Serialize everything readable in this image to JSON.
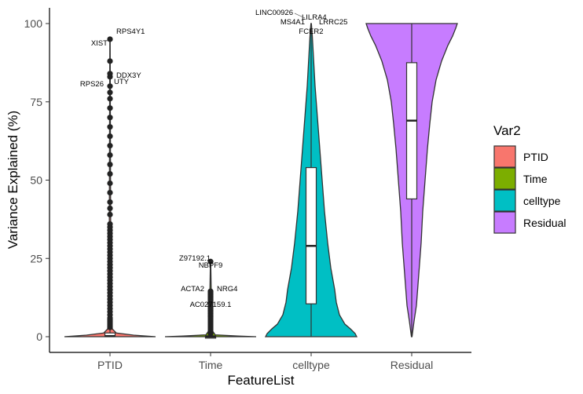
{
  "chart_data": {
    "type": "violin",
    "xlabel": "FeatureList",
    "ylabel": "Variance Explained (%)",
    "categories": [
      "PTID",
      "Time",
      "celltype",
      "Residual"
    ],
    "ylim": [
      0,
      105
    ],
    "yticks": [
      0,
      25,
      50,
      75,
      100
    ],
    "legend": {
      "title": "Var2",
      "position": "right",
      "entries": [
        {
          "label": "PTID",
          "color": "#F8766D"
        },
        {
          "label": "Time",
          "color": "#7CAE00"
        },
        {
          "label": "celltype",
          "color": "#00BFC4"
        },
        {
          "label": "Residual",
          "color": "#C77CFF"
        }
      ]
    },
    "series": [
      {
        "category": "PTID",
        "color": "#F8766D",
        "box": {
          "q1": 0.05,
          "median": 0.2,
          "q3": 1.2,
          "whisker_low": 0,
          "whisker_high": 2.8
        },
        "outliers": [
          3,
          3.5,
          4,
          4.5,
          5,
          5.5,
          6,
          7,
          8,
          9,
          10,
          11,
          12,
          13,
          14,
          15,
          16,
          17,
          18,
          19,
          20,
          21,
          22,
          23,
          24,
          25,
          26,
          27,
          28,
          29,
          30,
          31,
          32,
          33,
          34,
          35,
          36,
          39,
          41,
          43,
          46,
          49,
          52,
          55,
          58,
          61,
          64,
          67,
          70,
          73,
          76,
          78,
          80,
          83,
          84,
          88,
          95
        ],
        "labels": [
          {
            "text": "RPS4Y1",
            "value": 95
          },
          {
            "text": "XIST",
            "value": 88
          },
          {
            "text": "DDX3Y",
            "value": 84
          },
          {
            "text": "RPS26",
            "value": 83
          },
          {
            "text": "UTY",
            "value": 80
          }
        ]
      },
      {
        "category": "Time",
        "color": "#7CAE00",
        "box": {
          "q1": 0,
          "median": 0,
          "q3": 0.3,
          "whisker_low": 0,
          "whisker_high": 0.8
        },
        "outliers": [
          1,
          1.5,
          2,
          2.5,
          3,
          3.5,
          4,
          4.5,
          5,
          5.5,
          6,
          6.5,
          7,
          7.5,
          8,
          8.5,
          9,
          9.5,
          10,
          10.5,
          11,
          11.5,
          12,
          12.5,
          13,
          13.5,
          14,
          14.5,
          24
        ],
        "labels": [
          {
            "text": "Z97192.1",
            "value": 24
          },
          {
            "text": "NBPF9",
            "value": 18.5
          },
          {
            "text": "ACTA2",
            "value": 13.5
          },
          {
            "text": "NRG4",
            "value": 13.5
          },
          {
            "text": "AC027159.1",
            "value": 8.5
          }
        ]
      },
      {
        "category": "celltype",
        "color": "#00BFC4",
        "box": {
          "q1": 10.5,
          "median": 29,
          "q3": 54,
          "whisker_low": 0,
          "whisker_high": 100
        },
        "outliers": [],
        "labels": [
          {
            "text": "LINC00926",
            "value": 100
          },
          {
            "text": "LILRA4",
            "value": 99
          },
          {
            "text": "MS4A1",
            "value": 98
          },
          {
            "text": "LRRC25",
            "value": 98
          },
          {
            "text": "FCER2",
            "value": 96
          }
        ]
      },
      {
        "category": "Residual",
        "color": "#C77CFF",
        "box": {
          "q1": 44,
          "median": 69,
          "q3": 87.5,
          "whisker_low": 0,
          "whisker_high": 100
        },
        "outliers": [],
        "labels": []
      }
    ]
  }
}
